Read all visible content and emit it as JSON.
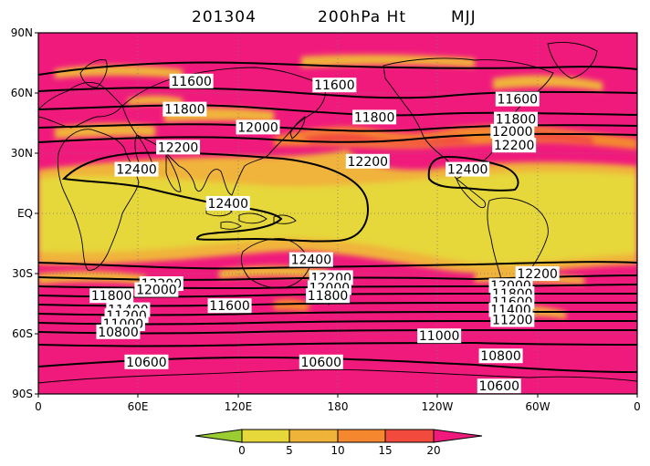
{
  "title": {
    "date": "201304",
    "variable": "200hPa  Ht",
    "season": "MJJ"
  },
  "map": {
    "lat_labels": [
      "90N",
      "60N",
      "30N",
      "EQ",
      "30S",
      "60S",
      "90S"
    ],
    "lon_labels": [
      "0",
      "60E",
      "120E",
      "180",
      "120W",
      "60W",
      "0"
    ]
  },
  "contour_labels": [
    {
      "text": "11600",
      "lon": 92,
      "lat": 66
    },
    {
      "text": "11600",
      "lon": 178,
      "lat": 64
    },
    {
      "text": "11600",
      "lon": 288,
      "lat": 57
    },
    {
      "text": "11800",
      "lon": 88,
      "lat": 52
    },
    {
      "text": "11800",
      "lon": 202,
      "lat": 48
    },
    {
      "text": "11800",
      "lon": 287,
      "lat": 47
    },
    {
      "text": "12000",
      "lon": 132,
      "lat": 43
    },
    {
      "text": "12000",
      "lon": 285,
      "lat": 41
    },
    {
      "text": "12200",
      "lon": 84,
      "lat": 33
    },
    {
      "text": "12200",
      "lon": 198,
      "lat": 26
    },
    {
      "text": "12200",
      "lon": 286,
      "lat": 34
    },
    {
      "text": "12400",
      "lon": 59,
      "lat": 22
    },
    {
      "text": "12400",
      "lon": 258,
      "lat": 22
    },
    {
      "text": "12400",
      "lon": 114,
      "lat": 5
    },
    {
      "text": "12400",
      "lon": 164,
      "lat": -23
    },
    {
      "text": "12200",
      "lon": 74,
      "lat": -35
    },
    {
      "text": "12000",
      "lon": 71,
      "lat": -38
    },
    {
      "text": "12200",
      "lon": 176,
      "lat": -32
    },
    {
      "text": "12000",
      "lon": 175,
      "lat": -37
    },
    {
      "text": "11800",
      "lon": 174,
      "lat": -41
    },
    {
      "text": "12200",
      "lon": 300,
      "lat": -30
    },
    {
      "text": "12000",
      "lon": 284,
      "lat": -36
    },
    {
      "text": "11800",
      "lon": 285,
      "lat": -40
    },
    {
      "text": "11600",
      "lon": 285,
      "lat": -44
    },
    {
      "text": "11400",
      "lon": 284,
      "lat": -48
    },
    {
      "text": "11200",
      "lon": 285,
      "lat": -53
    },
    {
      "text": "11800",
      "lon": 44,
      "lat": -41
    },
    {
      "text": "11400",
      "lon": 54,
      "lat": -48
    },
    {
      "text": "11200",
      "lon": 53,
      "lat": -51
    },
    {
      "text": "11000",
      "lon": 51,
      "lat": -55
    },
    {
      "text": "10800",
      "lon": 48,
      "lat": -59
    },
    {
      "text": "11600",
      "lon": 115,
      "lat": -46
    },
    {
      "text": "11000",
      "lon": 241,
      "lat": -61
    },
    {
      "text": "10800",
      "lon": 278,
      "lat": -71
    },
    {
      "text": "10600",
      "lon": 65,
      "lat": -74
    },
    {
      "text": "10600",
      "lon": 170,
      "lat": -74
    },
    {
      "text": "10600",
      "lon": 277,
      "lat": -86
    }
  ],
  "colorbar": {
    "tick_labels": [
      "0",
      "5",
      "10",
      "15",
      "20"
    ],
    "colors": {
      "under": "#9acd32",
      "b0_5": "#e6d73a",
      "b5_10": "#f0b33a",
      "b10_15": "#f5882f",
      "b15_20": "#f24b3e",
      "over": "#f01a7d"
    }
  }
}
